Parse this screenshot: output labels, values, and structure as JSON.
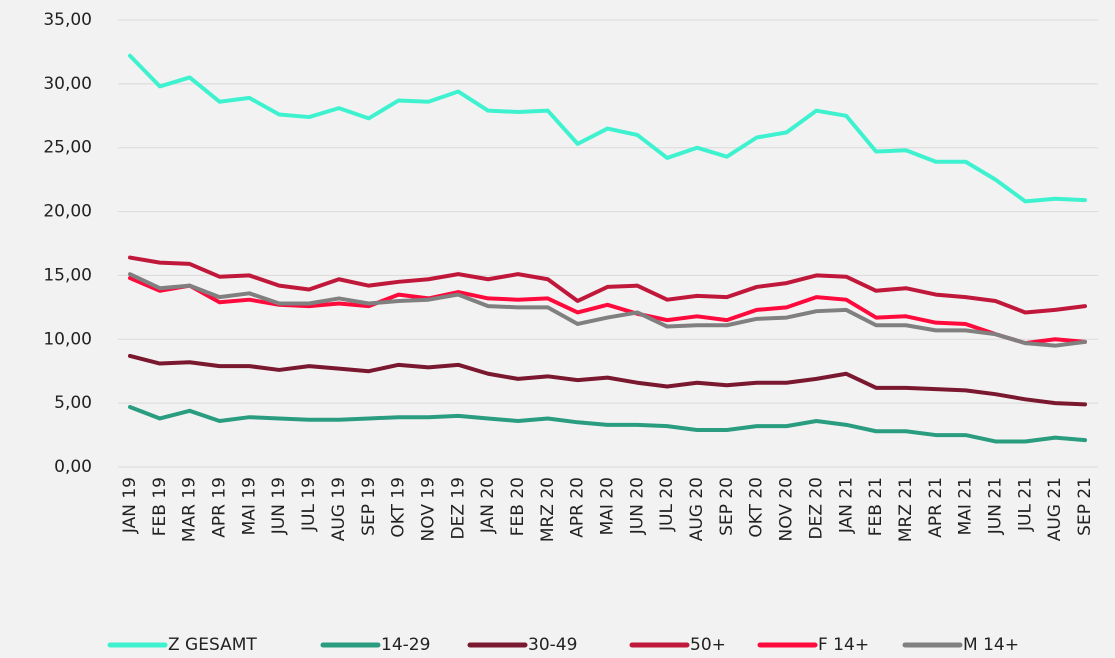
{
  "chart_data": {
    "type": "line",
    "categories": [
      "JAN 19",
      "FEB 19",
      "MAR 19",
      "APR 19",
      "MAI 19",
      "JUN 19",
      "JUL 19",
      "AUG 19",
      "SEP 19",
      "OKT 19",
      "NOV 19",
      "DEZ 19",
      "JAN 20",
      "FEB 20",
      "MRZ 20",
      "APR 20",
      "MAI 20",
      "JUN 20",
      "JUL 20",
      "AUG 20",
      "SEP 20",
      "OKT 20",
      "NOV 20",
      "DEZ 20",
      "JAN 21",
      "FEB 21",
      "MRZ 21",
      "APR 21",
      "MAI 21",
      "JUN 21",
      "JUL 21",
      "AUG 21",
      "SEP 21"
    ],
    "series": [
      {
        "name": "Z GESAMT",
        "color": "#3ff2cf",
        "values": [
          32.2,
          29.8,
          30.5,
          28.6,
          28.9,
          27.6,
          27.4,
          28.1,
          27.3,
          28.7,
          28.6,
          29.4,
          27.9,
          27.8,
          27.9,
          25.3,
          26.5,
          26.0,
          24.2,
          25.0,
          24.3,
          25.8,
          26.2,
          27.9,
          27.5,
          24.7,
          24.8,
          23.9,
          23.9,
          22.5,
          20.8,
          21.0,
          20.9
        ]
      },
      {
        "name": "14-29",
        "color": "#2a9d80",
        "values": [
          4.7,
          3.8,
          4.4,
          3.6,
          3.9,
          3.8,
          3.7,
          3.7,
          3.8,
          3.9,
          3.9,
          4.0,
          3.8,
          3.6,
          3.8,
          3.5,
          3.3,
          3.3,
          3.2,
          2.9,
          2.9,
          3.2,
          3.2,
          3.6,
          3.3,
          2.8,
          2.8,
          2.5,
          2.5,
          2.0,
          2.0,
          2.3,
          2.1
        ]
      },
      {
        "name": "30-49",
        "color": "#7a1830",
        "values": [
          8.7,
          8.1,
          8.2,
          7.9,
          7.9,
          7.6,
          7.9,
          7.7,
          7.5,
          8.0,
          7.8,
          8.0,
          7.3,
          6.9,
          7.1,
          6.8,
          7.0,
          6.6,
          6.3,
          6.6,
          6.4,
          6.6,
          6.6,
          6.9,
          7.3,
          6.2,
          6.2,
          6.1,
          6.0,
          5.7,
          5.3,
          5.0,
          4.9
        ]
      },
      {
        "name": "50+",
        "color": "#c0183a",
        "values": [
          16.4,
          16.0,
          15.9,
          14.9,
          15.0,
          14.2,
          13.9,
          14.7,
          14.2,
          14.5,
          14.7,
          15.1,
          14.7,
          15.1,
          14.7,
          13.0,
          14.1,
          14.2,
          13.1,
          13.4,
          13.3,
          14.1,
          14.4,
          15.0,
          14.9,
          13.8,
          14.0,
          13.5,
          13.3,
          13.0,
          12.1,
          12.3,
          12.6
        ]
      },
      {
        "name": "F 14+",
        "color": "#ff0a3c",
        "values": [
          14.8,
          13.8,
          14.2,
          12.9,
          13.1,
          12.7,
          12.6,
          12.8,
          12.6,
          13.5,
          13.2,
          13.7,
          13.2,
          13.1,
          13.2,
          12.1,
          12.7,
          12.0,
          11.5,
          11.8,
          11.5,
          12.3,
          12.5,
          13.3,
          13.1,
          11.7,
          11.8,
          11.3,
          11.2,
          10.4,
          9.7,
          10.0,
          9.8
        ]
      },
      {
        "name": "M 14+",
        "color": "#808080",
        "values": [
          15.1,
          14.0,
          14.2,
          13.3,
          13.6,
          12.8,
          12.8,
          13.2,
          12.8,
          13.0,
          13.1,
          13.5,
          12.6,
          12.5,
          12.5,
          11.2,
          11.7,
          12.1,
          11.0,
          11.1,
          11.1,
          11.6,
          11.7,
          12.2,
          12.3,
          11.1,
          11.1,
          10.7,
          10.7,
          10.4,
          9.7,
          9.5,
          9.8
        ]
      }
    ],
    "ylim": [
      0,
      35
    ],
    "yticks": [
      {
        "value": 0,
        "label": "0,00"
      },
      {
        "value": 5,
        "label": "5,00"
      },
      {
        "value": 10,
        "label": "10,00"
      },
      {
        "value": 15,
        "label": "15,00"
      },
      {
        "value": 20,
        "label": "20,00"
      },
      {
        "value": 25,
        "label": "25,00"
      },
      {
        "value": 30,
        "label": "30,00"
      },
      {
        "value": 35,
        "label": "35,00"
      }
    ],
    "grid": true,
    "legend": "bottom"
  }
}
